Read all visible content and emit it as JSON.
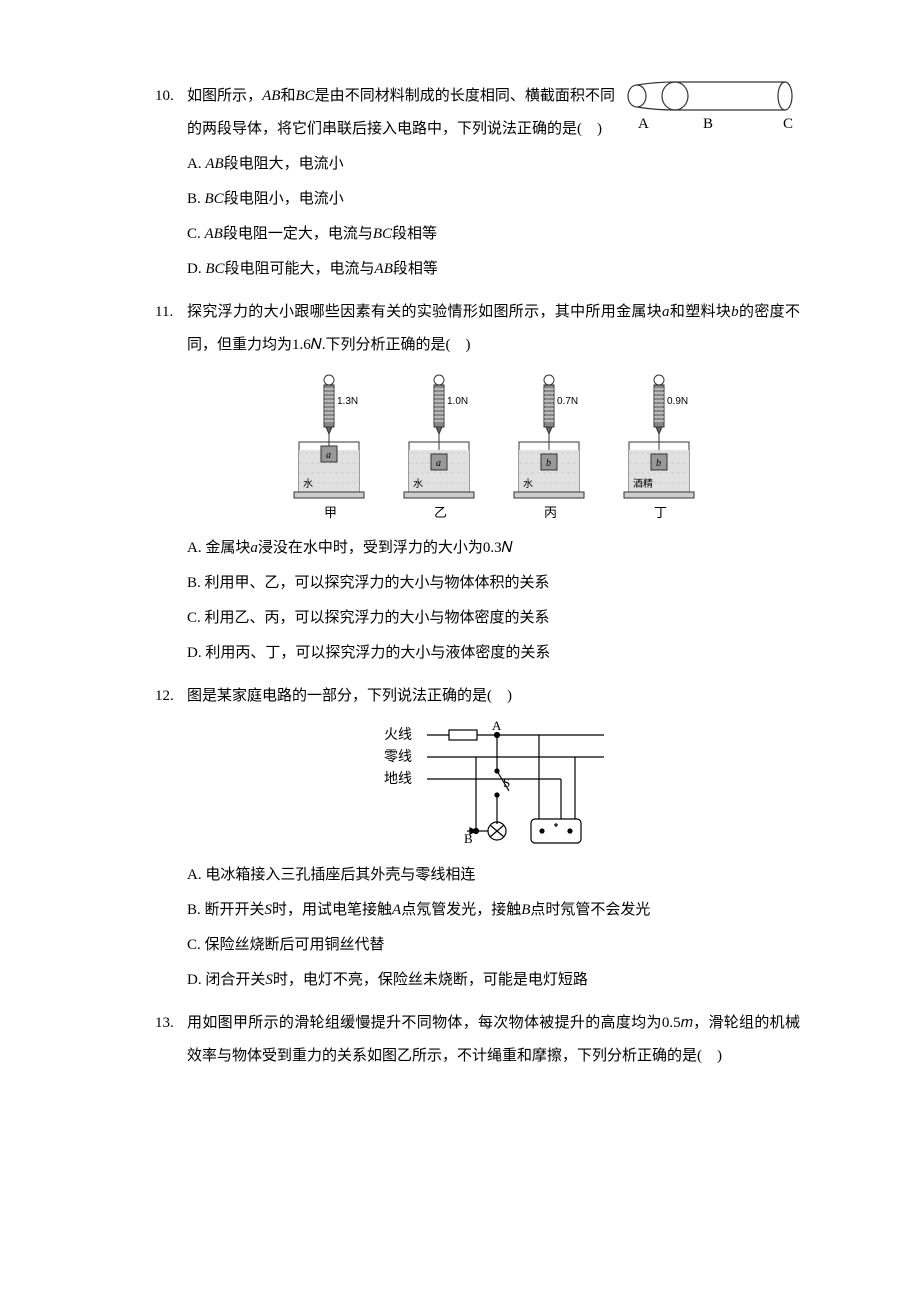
{
  "q10": {
    "num": "10.",
    "stem_parts": [
      "如图所示，",
      "AB",
      "和",
      "BC",
      "是由不同材料制成的长度相同、横截面积不同的两段导体，将它们串联后接入电路中，下列说法正确的是(　)"
    ],
    "options": {
      "A": [
        "AB",
        "段电阻大，电流小"
      ],
      "B": [
        "BC",
        "段电阻小，电流小"
      ],
      "C": [
        "AB",
        "段电阻一定大，电流与",
        "BC",
        "段相等"
      ],
      "D": [
        "BC",
        "段电阻可能大，电流与",
        "AB",
        "段相等"
      ]
    },
    "fig": {
      "labels": [
        "A",
        "B",
        "C"
      ],
      "stroke": "#333333"
    }
  },
  "q11": {
    "num": "11.",
    "stem_parts": [
      "探究浮力的大小跟哪些因素有关的实验情形如图所示，其中所用金属块",
      "a",
      "和塑料块",
      "b",
      "的密度不同，但重力均为",
      "1.6𝑁.",
      "下列分析正确的是(　)"
    ],
    "options": {
      "A": [
        "金属块",
        "a",
        "浸没在水中时，受到浮力的大小为",
        "0.3𝑁"
      ],
      "B": [
        "利用甲、乙，可以探究浮力的大小与物体体积的关系"
      ],
      "C": [
        "利用乙、丙，可以探究浮力的大小与物体密度的关系"
      ],
      "D": [
        "利用丙、丁，可以探究浮力的大小与液体密度的关系"
      ]
    },
    "figs": [
      {
        "reading": "1.3N",
        "block": "a",
        "liquid": "水",
        "label": "甲",
        "submerge": "partial"
      },
      {
        "reading": "1.0N",
        "block": "a",
        "liquid": "水",
        "label": "乙",
        "submerge": "full"
      },
      {
        "reading": "0.7N",
        "block": "b",
        "liquid": "水",
        "label": "丙",
        "submerge": "full"
      },
      {
        "reading": "0.9N",
        "block": "b",
        "liquid": "酒精",
        "label": "丁",
        "submerge": "full"
      }
    ],
    "fig_colors": {
      "water": "#dcdcdc",
      "block": "#a8a8a8",
      "scale": "#666666",
      "stroke": "#333333"
    }
  },
  "q12": {
    "num": "12.",
    "stem": "图是某家庭电路的一部分，下列说法正确的是(　)",
    "options": {
      "A": "电冰箱接入三孔插座后其外壳与零线相连",
      "B_parts": [
        "断开开关",
        "S",
        "时，用试电笔接触",
        "A",
        "点氖管发光，接触",
        "B",
        "点时氖管不会发光"
      ],
      "C": "保险丝烧断后可用铜丝代替",
      "D_parts": [
        "闭合开关",
        "S",
        "时，电灯不亮，保险丝未烧断，可能是电灯短路"
      ]
    },
    "fig": {
      "lines": [
        "火线",
        "零线",
        "地线"
      ],
      "labels": {
        "A": "A",
        "B": "B",
        "S": "S"
      },
      "stroke": "#000000"
    }
  },
  "q13": {
    "num": "13.",
    "stem_parts": [
      "用如图甲所示的滑轮组缓慢提升不同物体，每次物体被提升的高度均为",
      "0.5𝑚",
      "，滑轮组的机械效率与物体受到重力的关系如图乙所示，不计绳重和摩擦，下列分析正确的是(　)"
    ]
  }
}
